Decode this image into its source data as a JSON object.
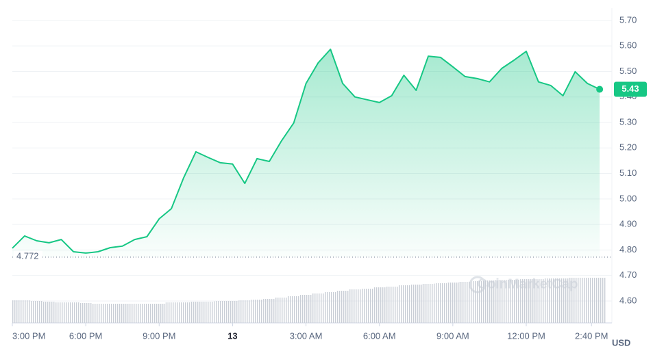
{
  "chart_data": {
    "type": "area",
    "series": [
      {
        "color": "#16c784",
        "values": [
          4.807,
          4.855,
          4.836,
          4.828,
          4.841,
          4.793,
          4.788,
          4.793,
          4.809,
          4.815,
          4.841,
          4.852,
          4.922,
          4.962,
          5.083,
          5.185,
          5.163,
          5.142,
          5.137,
          5.061,
          5.158,
          5.147,
          5.228,
          5.298,
          5.453,
          5.534,
          5.587,
          5.453,
          5.4,
          5.389,
          5.378,
          5.405,
          5.485,
          5.426,
          5.56,
          5.555,
          5.518,
          5.48,
          5.472,
          5.459,
          5.512,
          5.544,
          5.579,
          5.459,
          5.445,
          5.405,
          5.499,
          5.453,
          5.43
        ]
      }
    ],
    "x": [
      0,
      0.5,
      1,
      1.5,
      2,
      2.5,
      3,
      3.5,
      4,
      4.5,
      5,
      5.5,
      6,
      6.5,
      7,
      7.5,
      8,
      8.5,
      9,
      9.5,
      10,
      10.5,
      11,
      11.5,
      12,
      12.5,
      13,
      13.5,
      14,
      14.5,
      15,
      15.5,
      16,
      16.5,
      17,
      17.5,
      18,
      18.5,
      19,
      19.5,
      20,
      20.5,
      21,
      21.5,
      22,
      22.5,
      23,
      23.5,
      24
    ],
    "volume": [
      33,
      33,
      32,
      31,
      30,
      30,
      29,
      28,
      28,
      28,
      28,
      28,
      28,
      30,
      30,
      31,
      31,
      32,
      32,
      33,
      34,
      35,
      37,
      39,
      41,
      43,
      45,
      47,
      49,
      50,
      52,
      53,
      55,
      56,
      57,
      58,
      59,
      60,
      61,
      62,
      63,
      63,
      64,
      64,
      65,
      65,
      66,
      66,
      66
    ],
    "xlim": [
      0,
      24.5
    ],
    "xticks": [
      {
        "value": 0,
        "label": "3:00 PM"
      },
      {
        "value": 3,
        "label": "6:00 PM"
      },
      {
        "value": 6,
        "label": "9:00 PM"
      },
      {
        "value": 9,
        "label": "13"
      },
      {
        "value": 12,
        "label": "3:00 AM"
      },
      {
        "value": 15,
        "label": "6:00 AM"
      },
      {
        "value": 18,
        "label": "9:00 AM"
      },
      {
        "value": 21,
        "label": "12:00 PM"
      },
      {
        "value": 23.667,
        "label": "2:40 PM"
      }
    ],
    "ylim": [
      4.514,
      5.748
    ],
    "yticks": [
      {
        "value": 4.6,
        "label": "4.60"
      },
      {
        "value": 4.7,
        "label": "4.70"
      },
      {
        "value": 4.8,
        "label": "4.80"
      },
      {
        "value": 4.9,
        "label": "4.90"
      },
      {
        "value": 5.0,
        "label": "5.00"
      },
      {
        "value": 5.1,
        "label": "5.10"
      },
      {
        "value": 5.2,
        "label": "5.20"
      },
      {
        "value": 5.3,
        "label": "5.30"
      },
      {
        "value": 5.4,
        "label": "5.40"
      },
      {
        "value": 5.5,
        "label": "5.50"
      },
      {
        "value": 5.6,
        "label": "5.60"
      },
      {
        "value": 5.7,
        "label": "5.70"
      }
    ],
    "reference_line": 4.772,
    "currency": "USD",
    "watermark": "CoinMarketCap",
    "grid": true
  }
}
